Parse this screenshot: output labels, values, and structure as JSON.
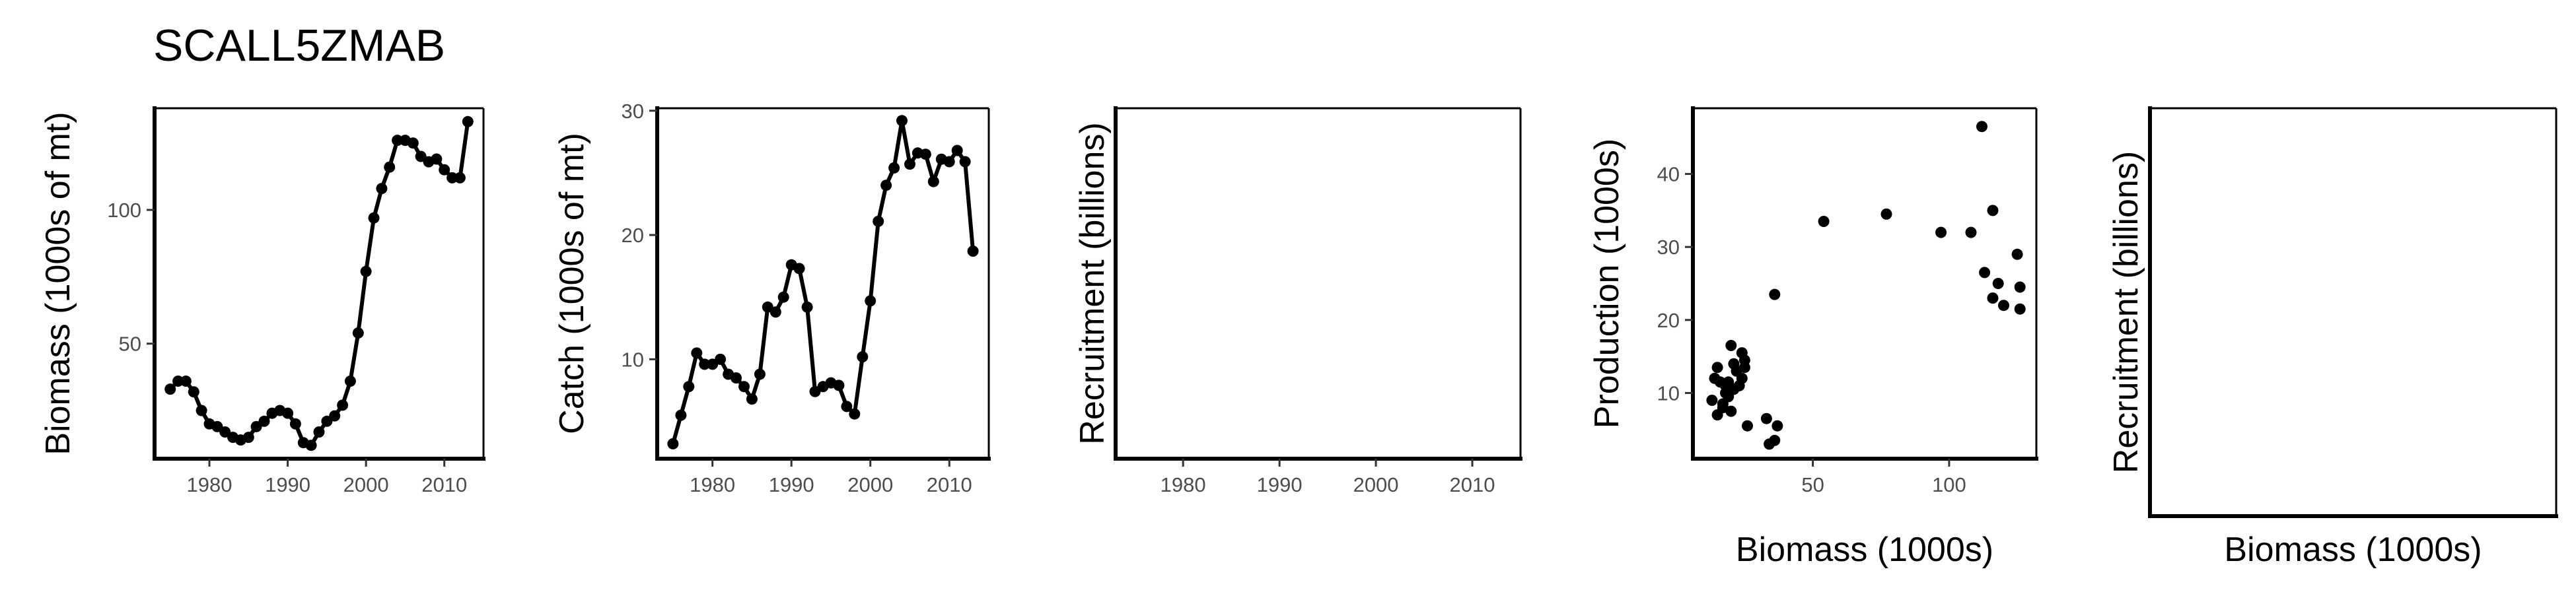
{
  "title": "SCALL5ZMAB",
  "chart_data": [
    {
      "type": "line",
      "xlabel": "",
      "ylabel": "Biomass (1000s of mt)",
      "xlim": [
        1973,
        2015
      ],
      "ylim": [
        7,
        138
      ],
      "xticks": [
        1980,
        1990,
        2000,
        2010
      ],
      "yticks": [
        50,
        100
      ],
      "x": [
        1975,
        1976,
        1977,
        1978,
        1979,
        1980,
        1981,
        1982,
        1983,
        1984,
        1985,
        1986,
        1987,
        1988,
        1989,
        1990,
        1991,
        1992,
        1993,
        1994,
        1995,
        1996,
        1997,
        1998,
        1999,
        2000,
        2001,
        2002,
        2003,
        2004,
        2005,
        2006,
        2007,
        2008,
        2009,
        2010,
        2011,
        2012,
        2013
      ],
      "y": [
        33,
        36,
        36,
        32,
        25,
        20,
        19,
        17,
        15,
        14,
        15,
        19,
        21,
        24,
        25,
        24,
        20,
        13,
        12,
        17,
        21,
        23,
        27,
        36,
        54,
        77,
        97,
        108,
        116,
        126,
        126,
        125,
        120,
        118,
        119,
        115,
        112,
        112,
        133
      ]
    },
    {
      "type": "line",
      "xlabel": "",
      "ylabel": "Catch (1000s of mt)",
      "xlim": [
        1973,
        2015
      ],
      "ylim": [
        2,
        30.2
      ],
      "xticks": [
        1980,
        1990,
        2000,
        2010
      ],
      "yticks": [
        10,
        20,
        30
      ],
      "x": [
        1975,
        1976,
        1977,
        1978,
        1979,
        1980,
        1981,
        1982,
        1983,
        1984,
        1985,
        1986,
        1987,
        1988,
        1989,
        1990,
        1991,
        1992,
        1993,
        1994,
        1995,
        1996,
        1997,
        1998,
        1999,
        2000,
        2001,
        2002,
        2003,
        2004,
        2005,
        2006,
        2007,
        2008,
        2009,
        2010,
        2011,
        2012,
        2013
      ],
      "y": [
        3.2,
        5.5,
        7.8,
        10.5,
        9.6,
        9.6,
        10.0,
        8.8,
        8.5,
        7.8,
        6.8,
        8.8,
        14.2,
        13.8,
        15.0,
        17.6,
        17.3,
        14.2,
        7.4,
        7.8,
        8.1,
        7.9,
        6.2,
        5.6,
        10.2,
        14.7,
        21.1,
        24.0,
        25.4,
        29.2,
        25.7,
        26.6,
        26.5,
        24.3,
        26.1,
        25.9,
        26.8,
        25.9,
        18.7
      ]
    },
    {
      "type": "line",
      "xlabel": "",
      "ylabel": "Recruitment (billions)",
      "xlim": [
        1973,
        2015
      ],
      "xticks": [
        1980,
        1990,
        2000,
        2010
      ],
      "yticks": [],
      "x": [],
      "y": []
    },
    {
      "type": "scatter",
      "xlabel": "Biomass (1000s)",
      "ylabel": "Production (1000s)",
      "xlim": [
        6,
        132
      ],
      "ylim": [
        1,
        49
      ],
      "xticks": [
        50,
        100
      ],
      "yticks": [
        10,
        20,
        30,
        40
      ],
      "x": [
        14,
        15,
        16,
        17,
        18,
        19,
        20,
        21,
        22,
        23,
        24,
        25,
        26,
        13,
        15,
        17,
        19,
        21,
        24,
        20,
        18,
        25,
        36,
        33,
        34,
        37,
        36,
        54,
        77,
        97,
        108,
        116,
        112,
        113,
        116,
        118,
        120,
        126,
        126,
        125
      ],
      "y": [
        12.0,
        13.5,
        11.5,
        8.5,
        10.0,
        11.5,
        16.5,
        14.0,
        13.0,
        11.0,
        15.5,
        13.5,
        5.5,
        9.0,
        7.0,
        8.0,
        9.5,
        10.5,
        12.0,
        7.5,
        11.0,
        14.5,
        23.5,
        6.5,
        3.0,
        5.5,
        3.5,
        33.5,
        34.5,
        32.0,
        32.0,
        35.0,
        46.5,
        26.5,
        23.0,
        25.0,
        22.0,
        21.5,
        24.5,
        29.0
      ]
    },
    {
      "type": "scatter",
      "xlabel": "Biomass (1000s)",
      "ylabel": "Recruitment (billions)",
      "xticks": [],
      "yticks": [],
      "x": [],
      "y": []
    }
  ]
}
